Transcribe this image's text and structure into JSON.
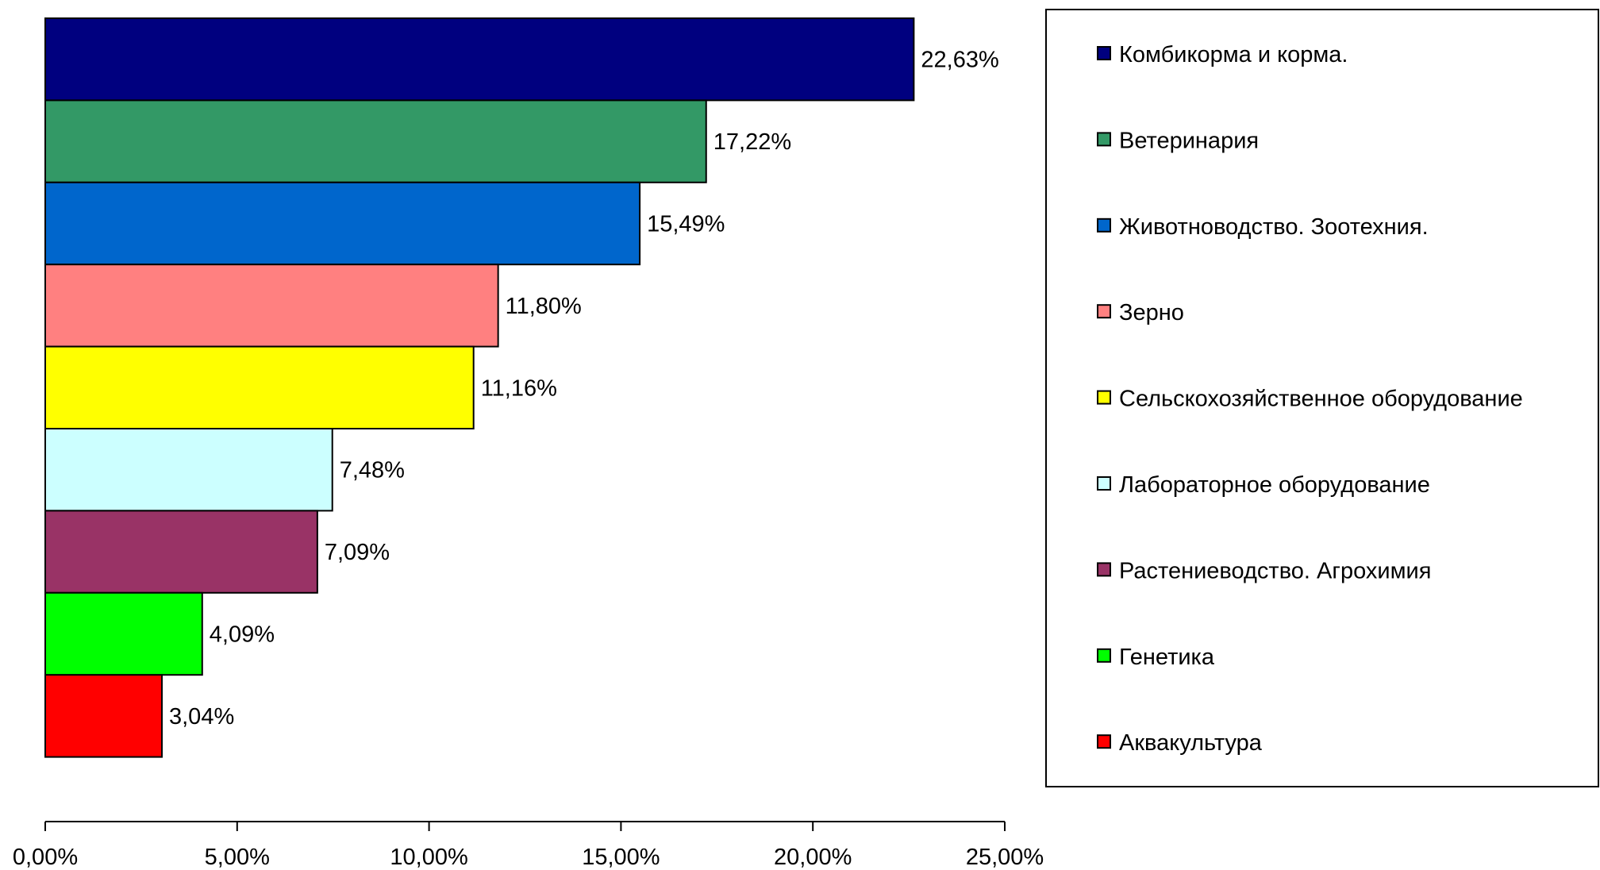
{
  "chart_data": {
    "type": "bar",
    "orientation": "horizontal",
    "categories": [
      "Комбикорма и корма.",
      "Ветеринария",
      "Животноводство. Зоотехния.",
      "Зерно",
      "Сельскохозяйственное оборудование",
      "Лабораторное оборудование",
      "Растениеводство. Агрохимия",
      "Генетика",
      "Аквакультура"
    ],
    "values": [
      22.63,
      17.22,
      15.49,
      11.8,
      11.16,
      7.48,
      7.09,
      4.09,
      3.04
    ],
    "value_labels": [
      "22,63%",
      "17,22%",
      "15,49%",
      "11,80%",
      "11,16%",
      "7,48%",
      "7,09%",
      "4,09%",
      "3,04%"
    ],
    "colors": [
      "#00007F",
      "#339966",
      "#0066CC",
      "#FF8080",
      "#FFFF00",
      "#CCFFFF",
      "#993366",
      "#00FF00",
      "#FF0000"
    ],
    "xlim": [
      0,
      25
    ],
    "x_ticks": [
      0,
      5,
      10,
      15,
      20,
      25
    ],
    "x_tick_labels": [
      "0,00%",
      "5,00%",
      "10,00%",
      "15,00%",
      "20,00%",
      "25,00%"
    ],
    "title": "",
    "xlabel": "",
    "ylabel": "",
    "grid": false,
    "legend": "right"
  }
}
